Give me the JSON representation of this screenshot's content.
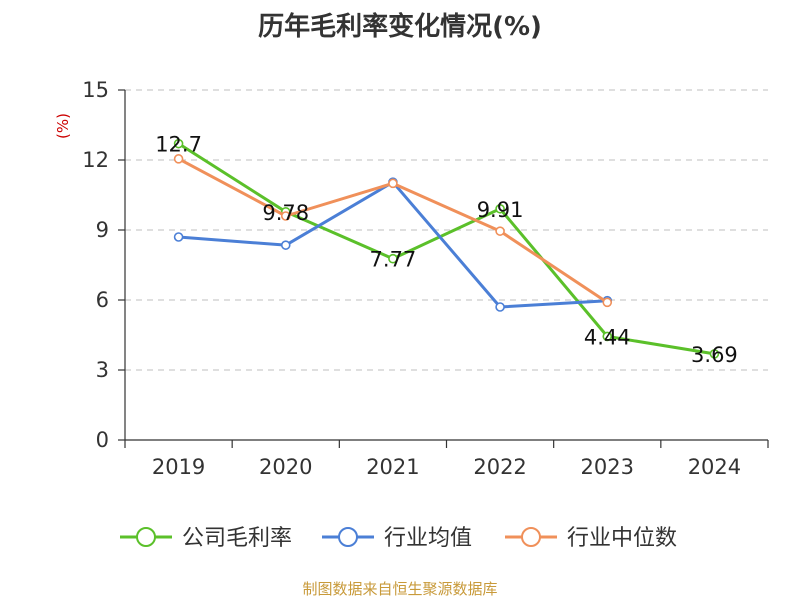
{
  "title": "历年毛利率变化情况(%)",
  "source": "制图数据来自恒生聚源数据库",
  "chart_data": {
    "type": "line",
    "title": "历年毛利率变化情况(%)",
    "ylabel": "(%)",
    "xlabel": "",
    "categories": [
      "2019",
      "2020",
      "2021",
      "2022",
      "2023",
      "2024"
    ],
    "ylim": [
      0,
      15
    ],
    "yticks": [
      0,
      3,
      6,
      9,
      12,
      15
    ],
    "grid": "horizontal-dashed",
    "legend": "bottom",
    "series": [
      {
        "name": "公司毛利率",
        "color": "#5bc02a",
        "values": [
          12.7,
          9.78,
          7.77,
          9.91,
          4.44,
          3.69
        ],
        "labels": [
          "12.7",
          "9.78",
          "7.77",
          "9.91",
          "4.44",
          "3.69"
        ]
      },
      {
        "name": "行业均值",
        "color": "#4b7fd6",
        "values": [
          8.7,
          8.35,
          11.05,
          5.7,
          5.97,
          null
        ]
      },
      {
        "name": "行业中位数",
        "color": "#f0905a",
        "values": [
          12.05,
          9.6,
          11.0,
          8.95,
          5.9,
          null
        ]
      }
    ]
  }
}
